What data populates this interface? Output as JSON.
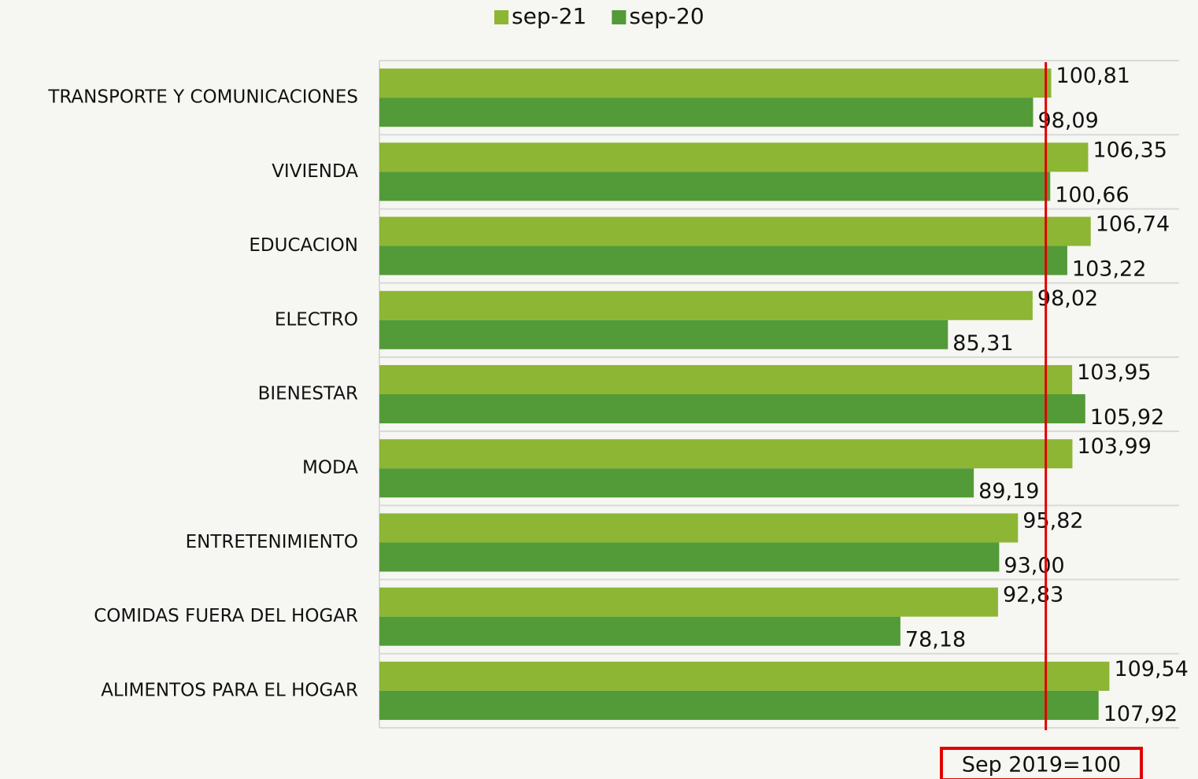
{
  "chart_data": {
    "type": "barh",
    "categories": [
      "TRANSPORTE Y COMUNICACIONES",
      "VIVIENDA",
      "EDUCACION",
      "ELECTRO",
      "BIENESTAR",
      "MODA",
      "ENTRETENIMIENTO",
      "COMIDAS FUERA DEL HOGAR",
      "ALIMENTOS PARA EL HOGAR"
    ],
    "series": [
      {
        "name": "sep-21",
        "color": "#8cb634",
        "values": [
          100.81,
          106.35,
          106.74,
          98.02,
          103.95,
          103.99,
          95.82,
          92.83,
          109.54
        ],
        "value_labels": [
          "100,81",
          "106,35",
          "106,74",
          "98,02",
          "103,95",
          "103,99",
          "95,82",
          "92,83",
          "109,54"
        ]
      },
      {
        "name": "sep-20",
        "color": "#529b38",
        "values": [
          98.09,
          100.66,
          103.22,
          85.31,
          105.92,
          89.19,
          93.0,
          78.18,
          107.92
        ],
        "value_labels": [
          "98,09",
          "100,66",
          "103,22",
          "85,31",
          "105,92",
          "89,19",
          "93,00",
          "78,18",
          "107,92"
        ]
      }
    ],
    "xlim": [
      0,
      120
    ],
    "reference_line": 100,
    "reference_color": "#e00000",
    "annotation": "Sep 2019=100",
    "legend": "top"
  }
}
